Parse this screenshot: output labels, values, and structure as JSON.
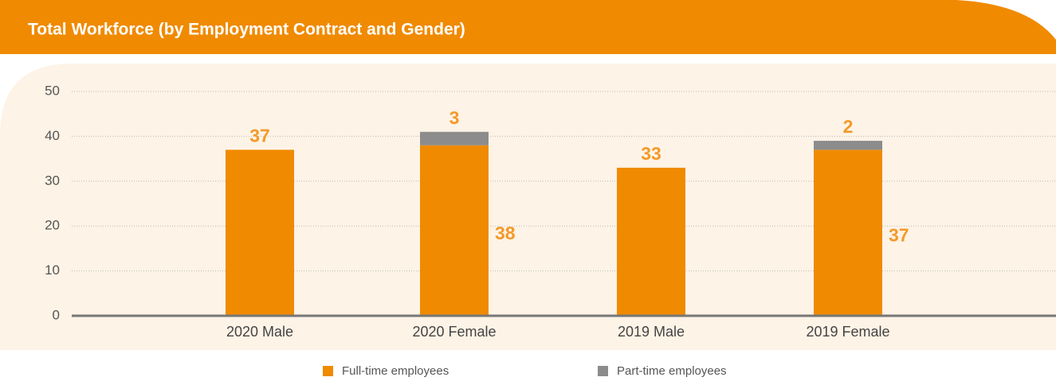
{
  "chart_data": {
    "type": "stacked_bar",
    "title": "Total Workforce (by Employment Contract and Gender)",
    "categories": [
      "2020 Male",
      "2020 Female",
      "2019 Male",
      "2019 Female"
    ],
    "series": [
      {
        "name": "Full-time employees",
        "color": "#f08a00",
        "values": [
          37,
          38,
          33,
          37
        ]
      },
      {
        "name": "Part-time employees",
        "color": "#8c8c8c",
        "values": [
          null,
          3,
          null,
          2
        ]
      }
    ],
    "ylim": [
      0,
      50
    ],
    "yticks": [
      0,
      10,
      20,
      30,
      40,
      50
    ],
    "grid": true,
    "legend": "bottom"
  }
}
